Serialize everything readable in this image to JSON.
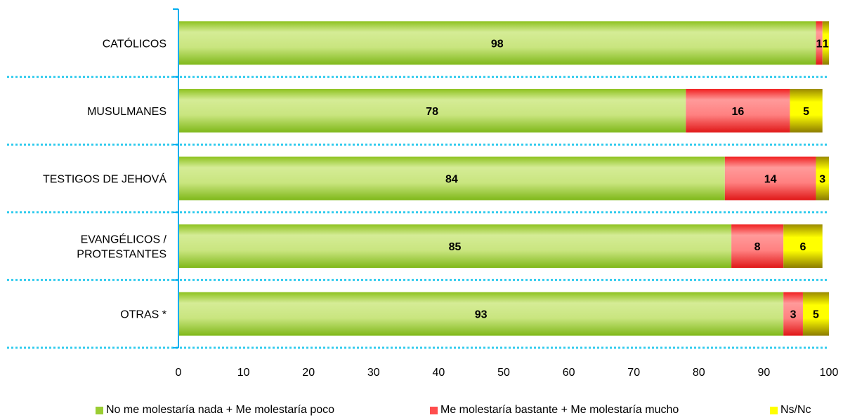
{
  "chart_data": {
    "type": "bar",
    "orientation": "horizontal",
    "stacked": true,
    "categories": [
      "CATÓLICOS",
      "MUSULMANES",
      "TESTIGOS DE JEHOVÁ",
      "EVANGÉLICOS / PROTESTANTES",
      "OTRAS *"
    ],
    "series": [
      {
        "name": "No me molestaría nada + Me molestaría poco",
        "values": [
          98,
          78,
          84,
          85,
          93
        ],
        "labels": [
          "98",
          "78",
          "84",
          "85",
          "93"
        ],
        "color": "#9ACD32"
      },
      {
        "name": "Me molestaría bastante + Me molestaría mucho",
        "values": [
          1,
          16,
          14,
          8,
          3
        ],
        "labels": [
          "1",
          "16",
          "14",
          "8",
          "3"
        ],
        "color": "#FF4D4D"
      },
      {
        "name": "Ns/Nc",
        "values": [
          1,
          5,
          3,
          6,
          5
        ],
        "labels": [
          "1",
          "5",
          "3",
          "6",
          "5"
        ],
        "color": "#FFFF00"
      }
    ],
    "xlim": [
      0,
      100
    ],
    "xticks": [
      "0",
      "10",
      "20",
      "30",
      "40",
      "50",
      "60",
      "70",
      "80",
      "90",
      "100"
    ],
    "legend_position": "bottom",
    "separator_color": "#33CCEE",
    "axis_color": "#00AEEF"
  }
}
